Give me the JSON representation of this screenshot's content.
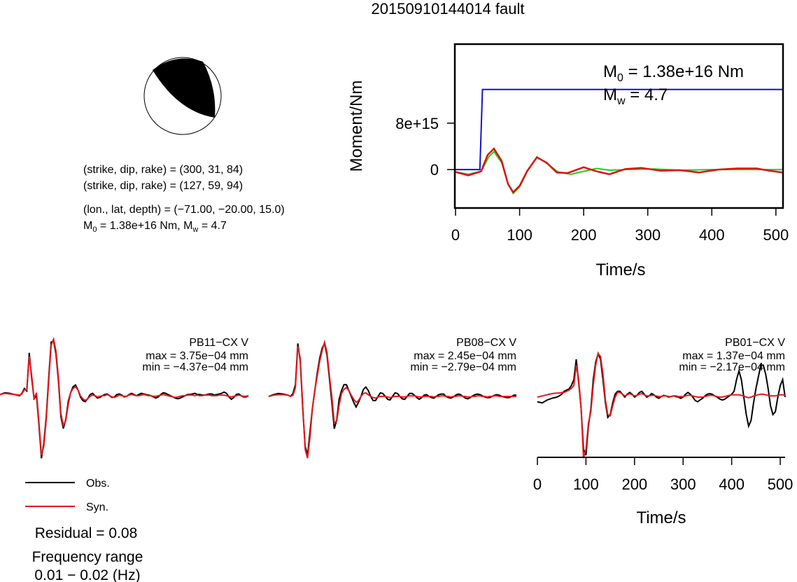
{
  "page": {
    "title": "20150910144014 fault"
  },
  "mechanism": {
    "line1": "(strike, dip, rake) = (300, 31, 84)",
    "line2": "(strike, dip, rake) = (127, 59, 94)",
    "line3": "(lon., lat, depth) = (−71.00, −20.00, 15.0)",
    "m0_sym": "M",
    "m0_sub": "0",
    "m0_rest": " = 1.38e+16 Nm, M",
    "mw_sub": "w",
    "mw_rest": " = 4.7"
  },
  "legend": {
    "obs": "Obs.",
    "syn": "Syn.",
    "residual": "Residual = 0.08",
    "freq_title": "Frequency range",
    "freq_range": "0.01 − 0.02 (Hz)",
    "colors": {
      "obs": "#000000",
      "syn": "#e8161c"
    }
  },
  "chart_data": [
    {
      "type": "line",
      "id": "moment_rate",
      "xlabel": "Time/s",
      "ylabel": "Moment/Nm",
      "xlim": [
        0,
        510
      ],
      "ylim": [
        -6500000000000000.0,
        2.15e+16
      ],
      "xticks": [
        0,
        100,
        200,
        300,
        400,
        500
      ],
      "yticks": [
        {
          "value": 0,
          "label": "0"
        },
        {
          "value": 8000000000000000.0,
          "label": "8e+15"
        }
      ],
      "annotation": {
        "m0_sym": "M",
        "m0_sub": "0",
        "m0_rest": " = 1.38e+16 Nm",
        "mw_sym": "M",
        "mw_sub": "w",
        "mw_rest": " = 4.7"
      },
      "series": [
        {
          "color": "#1414cc",
          "x": [
            0,
            38,
            42,
            43,
            510
          ],
          "y": [
            0,
            0,
            1.38e+16,
            1.38e+16,
            1.38e+16
          ]
        },
        {
          "color": "#22cc22",
          "x": [
            0,
            20,
            40,
            52,
            60,
            72,
            82,
            90,
            100,
            112,
            127,
            142,
            160,
            180,
            200,
            220,
            240,
            270,
            310,
            350,
            400,
            450,
            510
          ],
          "y": [
            -400000000000000.0,
            -800000000000000.0,
            -300000000000000.0,
            2200000000000000.0,
            3100000000000000.0,
            1200000000000000.0,
            -2500000000000000.0,
            -4100000000000000.0,
            -3000000000000000.0,
            -300000000000000.0,
            2200000000000000.0,
            1100000000000000.0,
            -400000000000000.0,
            -800000000000000.0,
            -300000000000000.0,
            200000000000000.0,
            -100000000000000.0,
            0,
            100000000000000.0,
            -100000000000000.0,
            0,
            0,
            0
          ]
        },
        {
          "color": "#dd1111",
          "x": [
            0,
            20,
            40,
            50,
            60,
            72,
            82,
            90,
            100,
            112,
            127,
            142,
            158,
            175,
            200,
            220,
            240,
            265,
            290,
            320,
            350,
            380,
            410,
            440,
            470,
            490,
            510
          ],
          "y": [
            -400000000000000.0,
            -1000000000000000.0,
            -300000000000000.0,
            2500000000000000.0,
            3600000000000000.0,
            1500000000000000.0,
            -2500000000000000.0,
            -3900000000000000.0,
            -2800000000000000.0,
            -200000000000000.0,
            2100000000000000.0,
            1200000000000000.0,
            -500000000000000.0,
            -600000000000000.0,
            400000000000000.0,
            -300000000000000.0,
            -800000000000000.0,
            100000000000000.0,
            300000000000000.0,
            -200000000000000.0,
            -100000000000000.0,
            -500000000000000.0,
            0,
            200000000000000.0,
            200000000000000.0,
            -200000000000000.0,
            -500000000000000.0
          ]
        }
      ]
    },
    {
      "type": "line",
      "id": "PB11",
      "station": "PB11−CX V",
      "max_label": "max = 3.75e−04 mm",
      "min_label": "min = −4.37e−04 mm",
      "x": [
        0,
        10,
        20,
        30,
        40,
        45,
        50,
        55,
        60,
        65,
        70,
        75,
        80,
        85,
        90,
        95,
        100,
        105,
        110,
        115,
        120,
        125,
        130,
        135,
        140,
        145,
        150,
        155,
        160,
        165,
        170,
        175,
        180,
        185,
        190,
        195,
        200,
        205,
        210,
        215,
        220,
        225,
        230,
        235,
        240,
        245,
        250,
        255,
        260,
        265,
        270,
        275,
        280,
        285,
        290,
        295,
        300,
        305,
        310,
        315,
        320,
        325,
        330,
        335,
        340,
        345,
        350,
        355,
        360,
        365,
        370,
        375,
        380,
        385,
        390,
        395,
        400,
        405,
        410,
        415,
        420,
        425,
        430,
        435,
        440,
        445,
        450,
        455,
        460,
        465,
        470,
        475,
        480,
        485,
        490,
        495,
        500,
        505,
        510
      ],
      "obs": [
        0.02,
        0.05,
        0.04,
        0.02,
        0.0,
        0.04,
        0.12,
        0.08,
        0.72,
        0.3,
        -0.05,
        0.0,
        -0.5,
        -1.05,
        -0.8,
        -0.35,
        0.3,
        0.9,
        0.92,
        0.7,
        0.25,
        -0.35,
        -0.55,
        -0.4,
        -0.1,
        0.05,
        0.15,
        0.18,
        0.1,
        -0.02,
        -0.08,
        -0.1,
        -0.05,
        0.02,
        0.04,
        0.0,
        -0.04,
        -0.03,
        0.0,
        0.02,
        0.03,
        0.0,
        -0.03,
        -0.02,
        0.02,
        0.03,
        0.01,
        -0.02,
        -0.01,
        0.02,
        0.04,
        0.02,
        0.0,
        0.02,
        0.04,
        0.03,
        0.02,
        0.01,
        0.0,
        -0.02,
        -0.04,
        -0.02,
        0.02,
        0.05,
        0.04,
        0.02,
        0.0,
        -0.02,
        -0.04,
        -0.05,
        -0.04,
        -0.02,
        0.0,
        0.02,
        0.02,
        0.03,
        0.04,
        0.02,
        0.02,
        0.01,
        0.01,
        0.02,
        0.03,
        0.03,
        0.01,
        0.02,
        0.03,
        0.04,
        0.06,
        0.04,
        -0.02,
        -0.06,
        -0.03,
        0.02,
        0.03,
        0.0,
        -0.02,
        -0.02,
        0.0
      ],
      "syn": [
        0.02,
        0.04,
        0.03,
        0.02,
        0.01,
        0.03,
        0.1,
        0.1,
        0.66,
        0.35,
        -0.05,
        0.05,
        -0.45,
        -1.0,
        -0.85,
        -0.4,
        0.25,
        0.85,
        0.95,
        0.75,
        0.3,
        -0.3,
        -0.5,
        -0.42,
        -0.15,
        0.05,
        0.12,
        0.15,
        0.1,
        0.0,
        -0.05,
        -0.08,
        -0.05,
        -0.01,
        0.01,
        0.0,
        -0.02,
        -0.01,
        0.0,
        0.0,
        0.02,
        0.0,
        -0.02,
        -0.03,
        -0.01,
        0.01,
        0.0,
        -0.01,
        -0.01,
        0.01,
        0.02,
        0.01,
        0.0,
        0.0,
        0.01,
        0.02,
        0.01,
        0.0,
        0.0,
        -0.01,
        -0.01,
        0.0,
        0.01,
        0.02,
        0.01,
        0.0,
        -0.01,
        -0.02,
        -0.03,
        -0.02,
        -0.01,
        0.0,
        0.0,
        0.01,
        0.01,
        0.01,
        0.0,
        0.01,
        0.0,
        0.0,
        0.01,
        0.01,
        0.01,
        0.0,
        0.0,
        0.0,
        0.01,
        0.01,
        0.01,
        0.0,
        -0.01,
        -0.02,
        -0.01,
        0.0,
        0.01,
        0.0,
        -0.01,
        -0.01,
        0.0
      ]
    },
    {
      "type": "line",
      "id": "PB08",
      "station": "PB08−CX V",
      "max_label": "max = 2.45e−04 mm",
      "min_label": "min = −2.79e−04 mm",
      "x": [
        0,
        10,
        20,
        30,
        40,
        45,
        50,
        55,
        60,
        65,
        70,
        75,
        80,
        85,
        90,
        95,
        100,
        105,
        110,
        115,
        120,
        125,
        130,
        135,
        140,
        145,
        150,
        155,
        160,
        165,
        170,
        175,
        180,
        185,
        190,
        195,
        200,
        205,
        210,
        215,
        220,
        225,
        230,
        235,
        240,
        245,
        250,
        255,
        260,
        265,
        270,
        275,
        280,
        285,
        290,
        295,
        300,
        305,
        310,
        315,
        320,
        325,
        330,
        335,
        340,
        345,
        350,
        355,
        360,
        365,
        370,
        375,
        380,
        385,
        390,
        395,
        400,
        405,
        410,
        415,
        420,
        425,
        430,
        435,
        440,
        445,
        450,
        455,
        460,
        465,
        470,
        475,
        480,
        485,
        490,
        495,
        500,
        505,
        510
      ],
      "obs": [
        0.0,
        0.03,
        0.05,
        0.04,
        0.02,
        0.0,
        0.05,
        0.2,
        0.9,
        0.6,
        -0.2,
        -0.85,
        -1.0,
        -0.6,
        -0.2,
        0.1,
        0.4,
        0.65,
        0.82,
        0.9,
        0.7,
        0.3,
        -0.1,
        -0.55,
        -0.4,
        -0.05,
        0.1,
        0.2,
        0.2,
        0.1,
        0.0,
        -0.1,
        -0.18,
        -0.1,
        0.0,
        0.12,
        0.16,
        0.1,
        0.0,
        -0.07,
        -0.07,
        0.0,
        0.06,
        0.05,
        0.0,
        -0.05,
        -0.06,
        0.0,
        0.06,
        0.05,
        0.0,
        -0.04,
        -0.05,
        0.0,
        0.05,
        0.05,
        0.02,
        -0.02,
        -0.05,
        -0.02,
        0.02,
        0.03,
        0.0,
        -0.02,
        -0.03,
        0.0,
        0.03,
        0.04,
        0.04,
        0.0,
        -0.02,
        -0.03,
        -0.01,
        0.02,
        0.04,
        0.03,
        0.0,
        -0.03,
        -0.04,
        -0.02,
        0.01,
        0.03,
        0.04,
        0.03,
        0.01,
        -0.01,
        -0.02,
        -0.02,
        0.0,
        0.02,
        0.03,
        0.02,
        0.0,
        -0.01,
        -0.02,
        -0.02,
        0.0,
        0.02,
        0.02
      ],
      "syn": [
        0.0,
        0.02,
        0.03,
        0.03,
        0.02,
        0.0,
        0.02,
        0.15,
        0.85,
        0.65,
        -0.15,
        -0.9,
        -1.05,
        -0.7,
        -0.2,
        0.1,
        0.35,
        0.6,
        0.78,
        0.92,
        0.75,
        0.35,
        0.0,
        -0.45,
        -0.42,
        -0.15,
        0.05,
        0.12,
        0.15,
        0.1,
        0.02,
        -0.05,
        -0.1,
        -0.07,
        0.0,
        0.05,
        0.06,
        0.03,
        0.0,
        -0.02,
        -0.03,
        -0.01,
        0.0,
        0.0,
        0.0,
        -0.01,
        -0.02,
        -0.01,
        0.0,
        0.0,
        0.0,
        -0.01,
        -0.01,
        0.0,
        0.01,
        0.01,
        0.01,
        0.0,
        -0.01,
        -0.01,
        0.0,
        0.0,
        0.0,
        0.0,
        -0.01,
        0.0,
        0.0,
        0.01,
        0.01,
        0.0,
        0.0,
        -0.01,
        0.0,
        0.0,
        0.01,
        0.01,
        0.0,
        0.0,
        -0.01,
        -0.01,
        0.0,
        0.0,
        0.01,
        0.01,
        0.0,
        0.0,
        -0.01,
        0.0,
        0.0,
        0.01,
        0.01,
        0.0,
        0.0,
        0.0,
        0.0,
        0.0,
        0.0,
        0.0,
        0.0
      ]
    },
    {
      "type": "line",
      "id": "PB01",
      "station": "PB01−CX V",
      "max_label": "max = 1.37e−04 mm",
      "min_label": "min = −2.17e−04 mm",
      "xlabel": "Time/s",
      "xlim": [
        0,
        510
      ],
      "xticks": [
        0,
        100,
        200,
        300,
        400,
        500
      ],
      "x": [
        0,
        10,
        20,
        30,
        40,
        45,
        50,
        55,
        60,
        65,
        70,
        75,
        80,
        85,
        90,
        95,
        100,
        105,
        110,
        115,
        120,
        125,
        130,
        135,
        140,
        145,
        150,
        155,
        160,
        165,
        170,
        175,
        180,
        185,
        190,
        195,
        200,
        205,
        210,
        215,
        220,
        225,
        230,
        235,
        240,
        245,
        250,
        255,
        260,
        265,
        270,
        275,
        280,
        285,
        290,
        295,
        300,
        305,
        310,
        315,
        320,
        325,
        330,
        335,
        340,
        345,
        350,
        355,
        360,
        365,
        370,
        375,
        380,
        385,
        390,
        395,
        400,
        405,
        410,
        415,
        420,
        425,
        430,
        435,
        440,
        445,
        450,
        455,
        460,
        465,
        470,
        475,
        480,
        485,
        490,
        495,
        500,
        505,
        510
      ],
      "obs": [
        -0.08,
        -0.1,
        -0.05,
        -0.02,
        0.0,
        0.02,
        0.05,
        0.1,
        0.12,
        0.14,
        0.2,
        0.3,
        0.65,
        0.25,
        -0.2,
        -0.9,
        -1.0,
        -0.5,
        -0.2,
        0.3,
        0.6,
        0.75,
        0.65,
        0.3,
        -0.1,
        -0.35,
        -0.3,
        -0.1,
        0.05,
        0.1,
        0.1,
        0.05,
        0.0,
        0.05,
        0.08,
        0.05,
        0.0,
        0.03,
        0.08,
        0.1,
        0.05,
        0.0,
        0.02,
        0.06,
        0.04,
        0.0,
        -0.02,
        0.01,
        0.03,
        0.02,
        0.0,
        0.01,
        0.02,
        0.01,
        0.0,
        -0.02,
        0.0,
        0.05,
        0.08,
        0.05,
        0.0,
        -0.06,
        -0.08,
        -0.05,
        -0.02,
        0.02,
        0.05,
        0.06,
        0.05,
        0.02,
        0.0,
        -0.03,
        -0.05,
        -0.04,
        -0.01,
        0.02,
        0.05,
        0.1,
        0.3,
        0.45,
        0.3,
        0.0,
        -0.3,
        -0.5,
        -0.4,
        -0.1,
        0.15,
        0.35,
        0.55,
        0.55,
        0.4,
        0.15,
        -0.15,
        -0.3,
        -0.25,
        0.0,
        0.2,
        0.3,
        0.0
      ],
      "syn": [
        0.0,
        0.02,
        0.04,
        0.06,
        0.07,
        0.07,
        0.08,
        0.08,
        0.1,
        0.12,
        0.15,
        0.2,
        0.55,
        0.3,
        -0.2,
        -1.05,
        -0.9,
        -0.45,
        -0.25,
        0.2,
        0.55,
        0.75,
        0.7,
        0.4,
        -0.05,
        -0.3,
        -0.32,
        -0.15,
        0.0,
        0.08,
        0.08,
        0.05,
        0.02,
        0.04,
        0.06,
        0.04,
        0.02,
        0.03,
        0.05,
        0.06,
        0.04,
        0.02,
        0.02,
        0.03,
        0.03,
        0.02,
        0.01,
        0.01,
        0.02,
        0.02,
        0.01,
        0.01,
        0.02,
        0.02,
        0.01,
        0.01,
        0.01,
        0.02,
        0.03,
        0.03,
        0.02,
        0.01,
        0.0,
        0.0,
        0.0,
        0.01,
        0.02,
        0.03,
        0.03,
        0.02,
        0.01,
        0.0,
        0.0,
        0.01,
        0.02,
        0.03,
        0.04,
        0.04,
        0.04,
        0.04,
        0.03,
        0.02,
        0.0,
        -0.01,
        0.0,
        0.02,
        0.03,
        0.04,
        0.05,
        0.05,
        0.04,
        0.03,
        0.02,
        0.02,
        0.02,
        0.03,
        0.04,
        0.04,
        0.03
      ]
    }
  ]
}
